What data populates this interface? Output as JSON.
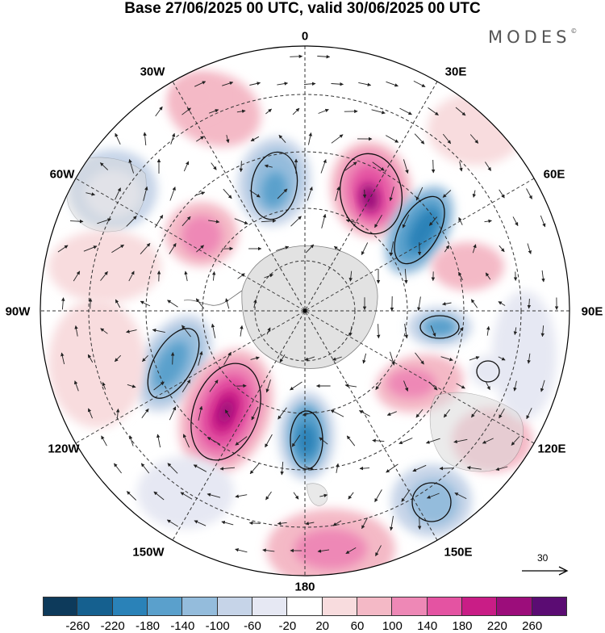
{
  "title": "Base 27/06/2025 00 UTC, valid 30/06/2025 00 UTC",
  "brand": {
    "text": "MODES",
    "mark": "©"
  },
  "map": {
    "projection": "south polar stereographic",
    "longitude_labels": {
      "top": "0",
      "top_left": "30W",
      "top_right": "30E",
      "upper_left": "60W",
      "upper_right": "60E",
      "left": "90W",
      "right": "90E",
      "lower_left": "120W",
      "lower_right": "120E",
      "bottom_left": "150W",
      "bottom_right": "150E",
      "bottom": "180"
    },
    "reference_vector": {
      "label": "30",
      "icon": "arrow-right-icon"
    }
  },
  "colorbar": {
    "colors": [
      "#0d3a5b",
      "#15608f",
      "#2a82b8",
      "#5aa0cc",
      "#94bcdc",
      "#c6d4e8",
      "#e6e8f3",
      "#ffffff",
      "#f8dcde",
      "#f4b9c6",
      "#ee88b6",
      "#e453a2",
      "#c91d86",
      "#9c0d7b",
      "#5b0c73"
    ],
    "tick_labels": [
      "-260",
      "-220",
      "-180",
      "-140",
      "-100",
      "-60",
      "-20",
      "20",
      "60",
      "100",
      "140",
      "180",
      "220",
      "260"
    ]
  }
}
